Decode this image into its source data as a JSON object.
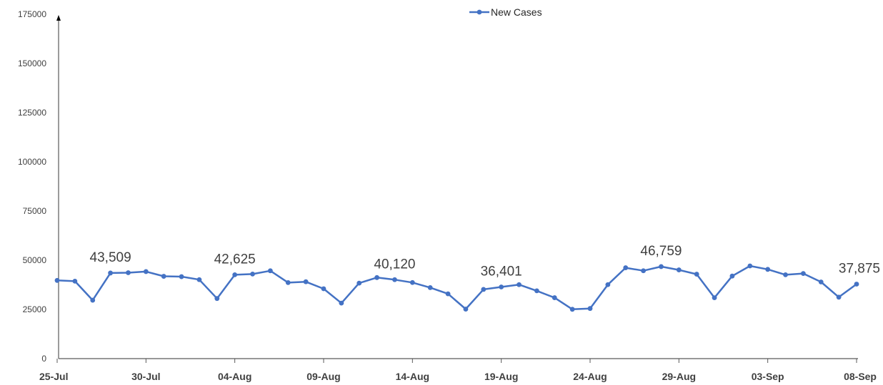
{
  "chart_data": {
    "type": "line",
    "x": [
      "25-Jul",
      "26-Jul",
      "27-Jul",
      "28-Jul",
      "29-Jul",
      "30-Jul",
      "31-Jul",
      "01-Aug",
      "02-Aug",
      "03-Aug",
      "04-Aug",
      "05-Aug",
      "06-Aug",
      "07-Aug",
      "08-Aug",
      "09-Aug",
      "10-Aug",
      "11-Aug",
      "12-Aug",
      "13-Aug",
      "14-Aug",
      "15-Aug",
      "16-Aug",
      "17-Aug",
      "18-Aug",
      "19-Aug",
      "20-Aug",
      "21-Aug",
      "22-Aug",
      "23-Aug",
      "24-Aug",
      "25-Aug",
      "26-Aug",
      "27-Aug",
      "28-Aug",
      "29-Aug",
      "30-Aug",
      "31-Aug",
      "01-Sep",
      "02-Sep",
      "03-Sep",
      "04-Sep",
      "05-Sep",
      "06-Sep",
      "07-Sep",
      "08-Sep"
    ],
    "x_tick_labels": [
      "25-Jul",
      "30-Jul",
      "04-Aug",
      "09-Aug",
      "14-Aug",
      "19-Aug",
      "24-Aug",
      "29-Aug",
      "03-Sep",
      "08-Sep"
    ],
    "series": [
      {
        "name": "New Cases",
        "color": "#4472c4",
        "values": [
          39742,
          39361,
          29689,
          43509,
          43654,
          44230,
          41831,
          41649,
          40134,
          30549,
          42625,
          42982,
          44643,
          38628,
          39070,
          35499,
          28204,
          38353,
          41195,
          40120,
          38667,
          36083,
          32937,
          25166,
          35178,
          36401,
          37593,
          34457,
          30948,
          25072,
          25467,
          37593,
          46164,
          44658,
          46759,
          45083,
          42909,
          30941,
          41965,
          47092,
          45352,
          42618,
          43263,
          38948,
          31222,
          37875
        ]
      }
    ],
    "annotations": [
      {
        "x": "28-Jul",
        "label": "43,509"
      },
      {
        "x": "04-Aug",
        "label": "42,625"
      },
      {
        "x": "13-Aug",
        "label": "40,120"
      },
      {
        "x": "19-Aug",
        "label": "36,401"
      },
      {
        "x": "28-Aug",
        "label": "46,759"
      },
      {
        "x": "08-Sep",
        "label": "37,875"
      }
    ],
    "y_ticks": [
      0,
      25000,
      50000,
      75000,
      100000,
      125000,
      150000,
      175000
    ],
    "ylim": [
      0,
      175000
    ],
    "grid": false,
    "legend_position": "top-center",
    "title": "",
    "xlabel": "",
    "ylabel": ""
  }
}
